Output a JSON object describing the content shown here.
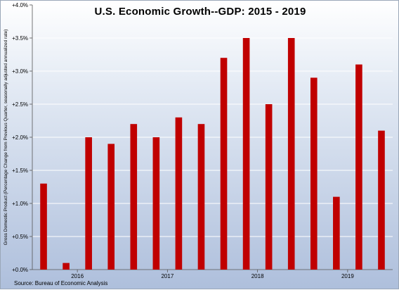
{
  "chart_data": {
    "type": "bar",
    "title": "U.S. Economic Growth--GDP: 2015 - 2019",
    "ylabel": "Gross Domestic Product (Percentage Change from Previous Quarter, seasonally adjusted annualized rate)",
    "xlabel": "",
    "source": "Source: Bureau of Economic Analysis",
    "ylim": [
      0,
      4.0
    ],
    "y_ticks": [
      "+0.0%",
      "+0.5%",
      "+1.0%",
      "+1.5%",
      "+2.0%",
      "+2.5%",
      "+3.0%",
      "+3.5%",
      "+4.0%"
    ],
    "x_tick_labels": [
      {
        "label": "2016",
        "after_bar": 2
      },
      {
        "label": "2017",
        "after_bar": 6
      },
      {
        "label": "2018",
        "after_bar": 10
      },
      {
        "label": "2019",
        "after_bar": 14
      }
    ],
    "values": [
      1.3,
      0.1,
      2.0,
      1.9,
      2.2,
      2.0,
      2.3,
      2.2,
      3.2,
      3.5,
      2.5,
      3.5,
      2.9,
      1.1,
      3.1,
      2.1
    ],
    "bar_color": "#c00000",
    "grid": true,
    "grid_color": "#ffffff"
  }
}
